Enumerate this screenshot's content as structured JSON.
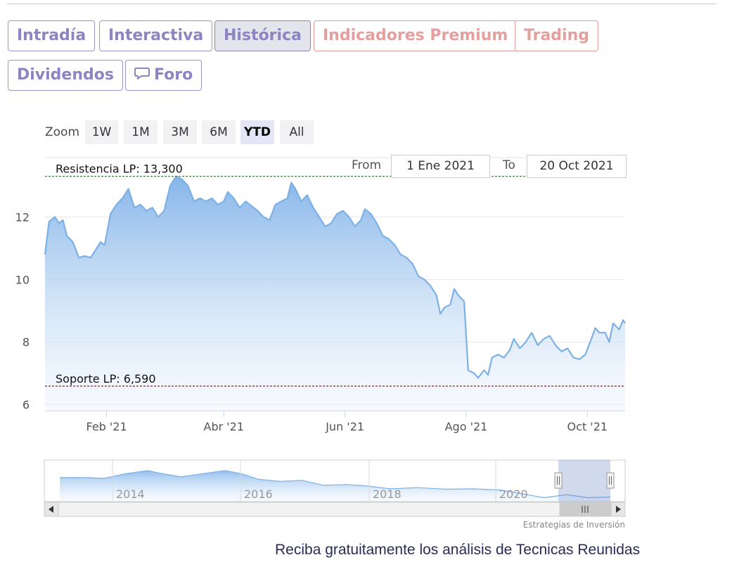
{
  "tabs": [
    {
      "label": "Intradía",
      "state": "normal"
    },
    {
      "label": "Interactiva",
      "state": "normal"
    },
    {
      "label": "Histórica",
      "state": "active"
    },
    {
      "label": "Indicadores Premium",
      "state": "premium"
    },
    {
      "label": "Trading",
      "state": "premium"
    },
    {
      "label": "Dividendos",
      "state": "normal"
    },
    {
      "label": "Foro",
      "state": "normal",
      "icon": "chat-bubble-icon"
    }
  ],
  "zoom": {
    "label": "Zoom",
    "buttons": [
      "1W",
      "1M",
      "3M",
      "6M",
      "YTD",
      "All"
    ],
    "selected": "YTD"
  },
  "range": {
    "from_label": "From",
    "from_value": "1 Ene 2021",
    "to_label": "To",
    "to_value": "20 Oct 2021"
  },
  "chart_data": {
    "type": "area",
    "title": "",
    "x_start": "2021-01-01",
    "x_end": "2021-10-20",
    "ylim": [
      5.8,
      13.9
    ],
    "y_ticks": [
      6,
      8,
      10,
      12
    ],
    "x_ticks": [
      {
        "date": "2021-02-01",
        "label": "Feb '21"
      },
      {
        "date": "2021-04-01",
        "label": "Abr '21"
      },
      {
        "date": "2021-06-01",
        "label": "Jun '21"
      },
      {
        "date": "2021-08-01",
        "label": "Ago '21"
      },
      {
        "date": "2021-10-01",
        "label": "Oct '21"
      }
    ],
    "series": [
      {
        "points": [
          [
            "2021-01-01",
            10.8
          ],
          [
            "2021-01-03",
            11.85
          ],
          [
            "2021-01-06",
            12.0
          ],
          [
            "2021-01-08",
            11.8
          ],
          [
            "2021-01-10",
            11.9
          ],
          [
            "2021-01-12",
            11.4
          ],
          [
            "2021-01-15",
            11.2
          ],
          [
            "2021-01-18",
            10.7
          ],
          [
            "2021-01-21",
            10.75
          ],
          [
            "2021-01-24",
            10.7
          ],
          [
            "2021-01-27",
            11.0
          ],
          [
            "2021-01-29",
            11.2
          ],
          [
            "2021-01-31",
            11.1
          ],
          [
            "2021-02-03",
            12.1
          ],
          [
            "2021-02-06",
            12.4
          ],
          [
            "2021-02-09",
            12.6
          ],
          [
            "2021-02-12",
            12.9
          ],
          [
            "2021-02-15",
            12.3
          ],
          [
            "2021-02-18",
            12.4
          ],
          [
            "2021-02-21",
            12.2
          ],
          [
            "2021-02-24",
            12.3
          ],
          [
            "2021-02-27",
            12.0
          ],
          [
            "2021-03-02",
            12.2
          ],
          [
            "2021-03-05",
            13.0
          ],
          [
            "2021-03-08",
            13.3
          ],
          [
            "2021-03-11",
            13.2
          ],
          [
            "2021-03-14",
            13.0
          ],
          [
            "2021-03-17",
            12.5
          ],
          [
            "2021-03-20",
            12.6
          ],
          [
            "2021-03-23",
            12.5
          ],
          [
            "2021-03-26",
            12.6
          ],
          [
            "2021-03-29",
            12.4
          ],
          [
            "2021-04-01",
            12.5
          ],
          [
            "2021-04-03",
            12.8
          ],
          [
            "2021-04-06",
            12.6
          ],
          [
            "2021-04-09",
            12.3
          ],
          [
            "2021-04-12",
            12.5
          ],
          [
            "2021-04-15",
            12.35
          ],
          [
            "2021-04-18",
            12.2
          ],
          [
            "2021-04-21",
            12.0
          ],
          [
            "2021-04-24",
            11.9
          ],
          [
            "2021-04-27",
            12.4
          ],
          [
            "2021-04-30",
            12.5
          ],
          [
            "2021-05-03",
            12.6
          ],
          [
            "2021-05-05",
            13.1
          ],
          [
            "2021-05-07",
            12.9
          ],
          [
            "2021-05-10",
            12.5
          ],
          [
            "2021-05-13",
            12.7
          ],
          [
            "2021-05-16",
            12.3
          ],
          [
            "2021-05-19",
            12.0
          ],
          [
            "2021-05-22",
            11.7
          ],
          [
            "2021-05-25",
            11.8
          ],
          [
            "2021-05-28",
            12.1
          ],
          [
            "2021-05-31",
            12.2
          ],
          [
            "2021-06-03",
            12.0
          ],
          [
            "2021-06-06",
            11.7
          ],
          [
            "2021-06-09",
            11.9
          ],
          [
            "2021-06-11",
            12.25
          ],
          [
            "2021-06-14",
            12.1
          ],
          [
            "2021-06-17",
            11.8
          ],
          [
            "2021-06-20",
            11.4
          ],
          [
            "2021-06-23",
            11.3
          ],
          [
            "2021-06-26",
            11.1
          ],
          [
            "2021-06-29",
            10.8
          ],
          [
            "2021-07-02",
            10.7
          ],
          [
            "2021-07-05",
            10.5
          ],
          [
            "2021-07-08",
            10.1
          ],
          [
            "2021-07-11",
            10.0
          ],
          [
            "2021-07-14",
            9.8
          ],
          [
            "2021-07-17",
            9.5
          ],
          [
            "2021-07-19",
            8.9
          ],
          [
            "2021-07-21",
            9.1
          ],
          [
            "2021-07-24",
            9.2
          ],
          [
            "2021-07-26",
            9.7
          ],
          [
            "2021-07-28",
            9.5
          ],
          [
            "2021-07-31",
            9.3
          ],
          [
            "2021-08-02",
            7.1
          ],
          [
            "2021-08-05",
            7.0
          ],
          [
            "2021-08-07",
            6.85
          ],
          [
            "2021-08-10",
            7.1
          ],
          [
            "2021-08-12",
            6.95
          ],
          [
            "2021-08-14",
            7.5
          ],
          [
            "2021-08-17",
            7.6
          ],
          [
            "2021-08-20",
            7.5
          ],
          [
            "2021-08-23",
            7.75
          ],
          [
            "2021-08-25",
            8.1
          ],
          [
            "2021-08-28",
            7.8
          ],
          [
            "2021-08-31",
            8.0
          ],
          [
            "2021-09-03",
            8.3
          ],
          [
            "2021-09-06",
            7.9
          ],
          [
            "2021-09-09",
            8.1
          ],
          [
            "2021-09-12",
            8.2
          ],
          [
            "2021-09-15",
            7.9
          ],
          [
            "2021-09-18",
            7.7
          ],
          [
            "2021-09-21",
            7.8
          ],
          [
            "2021-09-24",
            7.5
          ],
          [
            "2021-09-27",
            7.45
          ],
          [
            "2021-09-30",
            7.6
          ],
          [
            "2021-10-03",
            8.1
          ],
          [
            "2021-10-05",
            8.45
          ],
          [
            "2021-10-07",
            8.3
          ],
          [
            "2021-10-10",
            8.3
          ],
          [
            "2021-10-12",
            8.0
          ],
          [
            "2021-10-14",
            8.6
          ],
          [
            "2021-10-17",
            8.4
          ],
          [
            "2021-10-19",
            8.7
          ],
          [
            "2021-10-20",
            8.6
          ]
        ]
      }
    ],
    "annotations": [
      {
        "label": "Resistencia LP: 13,300",
        "y": 13.3,
        "color": "#2e6b2e"
      },
      {
        "label": "Soporte LP: 6,590",
        "y": 6.59,
        "color": "#7a2a2a"
      }
    ],
    "navigator": {
      "year_labels": [
        "2014",
        "2016",
        "2018",
        "2020"
      ],
      "points": [
        [
          0,
          0.62
        ],
        [
          0.05,
          0.62
        ],
        [
          0.08,
          0.6
        ],
        [
          0.12,
          0.72
        ],
        [
          0.16,
          0.8
        ],
        [
          0.18,
          0.74
        ],
        [
          0.22,
          0.64
        ],
        [
          0.26,
          0.72
        ],
        [
          0.3,
          0.8
        ],
        [
          0.33,
          0.72
        ],
        [
          0.36,
          0.58
        ],
        [
          0.4,
          0.52
        ],
        [
          0.44,
          0.55
        ],
        [
          0.48,
          0.42
        ],
        [
          0.52,
          0.44
        ],
        [
          0.56,
          0.4
        ],
        [
          0.6,
          0.33
        ],
        [
          0.65,
          0.36
        ],
        [
          0.7,
          0.32
        ],
        [
          0.75,
          0.33
        ],
        [
          0.8,
          0.3
        ],
        [
          0.84,
          0.2
        ],
        [
          0.88,
          0.1
        ],
        [
          0.92,
          0.18
        ],
        [
          0.96,
          0.1
        ],
        [
          1.0,
          0.12
        ]
      ]
    },
    "source": "Estrategias de Inversión"
  },
  "colors": {
    "line": "#7cb1e6",
    "fill_top": "#8ab8eb",
    "grid": "#e6e6e6",
    "resistance": "#2e6b2e",
    "support": "#7a2a2a"
  },
  "footer": {
    "text": "Reciba gratuitamente los análisis de Tecnicas Reunidas"
  }
}
